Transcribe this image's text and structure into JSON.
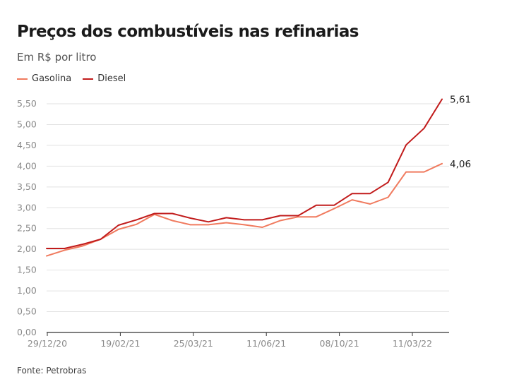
{
  "title": "Preços dos combustíveis nas refinarias",
  "subtitle": "Em R$ por litro",
  "source": "Fonte: Petrobras",
  "colors": {
    "gasolina": "#f07a5e",
    "diesel": "#c11b1b",
    "grid": "#e2e2e2",
    "axis": "#333333"
  },
  "chart_data": {
    "type": "line",
    "title": "Preços dos combustíveis nas refinarias",
    "subtitle": "Em R$ por litro",
    "ylim": [
      0,
      5.5
    ],
    "yticks": [
      "0,00",
      "0,50",
      "1,00",
      "1,50",
      "2,00",
      "2,50",
      "3,00",
      "3,50",
      "4,00",
      "4,50",
      "5,00",
      "5,50"
    ],
    "xtick_labels": [
      "29/12/20",
      "19/02/21",
      "25/03/21",
      "11/06/21",
      "08/10/21",
      "11/03/22"
    ],
    "grid": true,
    "legend_position": "top-left",
    "series": [
      {
        "name": "Gasolina",
        "color": "#f07a5e",
        "end_label": "4,06",
        "values": [
          1.84,
          1.98,
          2.08,
          2.24,
          2.48,
          2.6,
          2.84,
          2.69,
          2.59,
          2.59,
          2.64,
          2.59,
          2.53,
          2.69,
          2.78,
          2.78,
          2.98,
          3.19,
          3.09,
          3.25,
          3.86,
          3.86,
          4.06
        ]
      },
      {
        "name": "Diesel",
        "color": "#c11b1b",
        "end_label": "5,61",
        "values": [
          2.02,
          2.02,
          2.12,
          2.24,
          2.58,
          2.71,
          2.86,
          2.86,
          2.75,
          2.66,
          2.76,
          2.71,
          2.71,
          2.81,
          2.81,
          3.06,
          3.06,
          3.34,
          3.34,
          3.61,
          4.51,
          4.91,
          5.61
        ]
      }
    ]
  }
}
